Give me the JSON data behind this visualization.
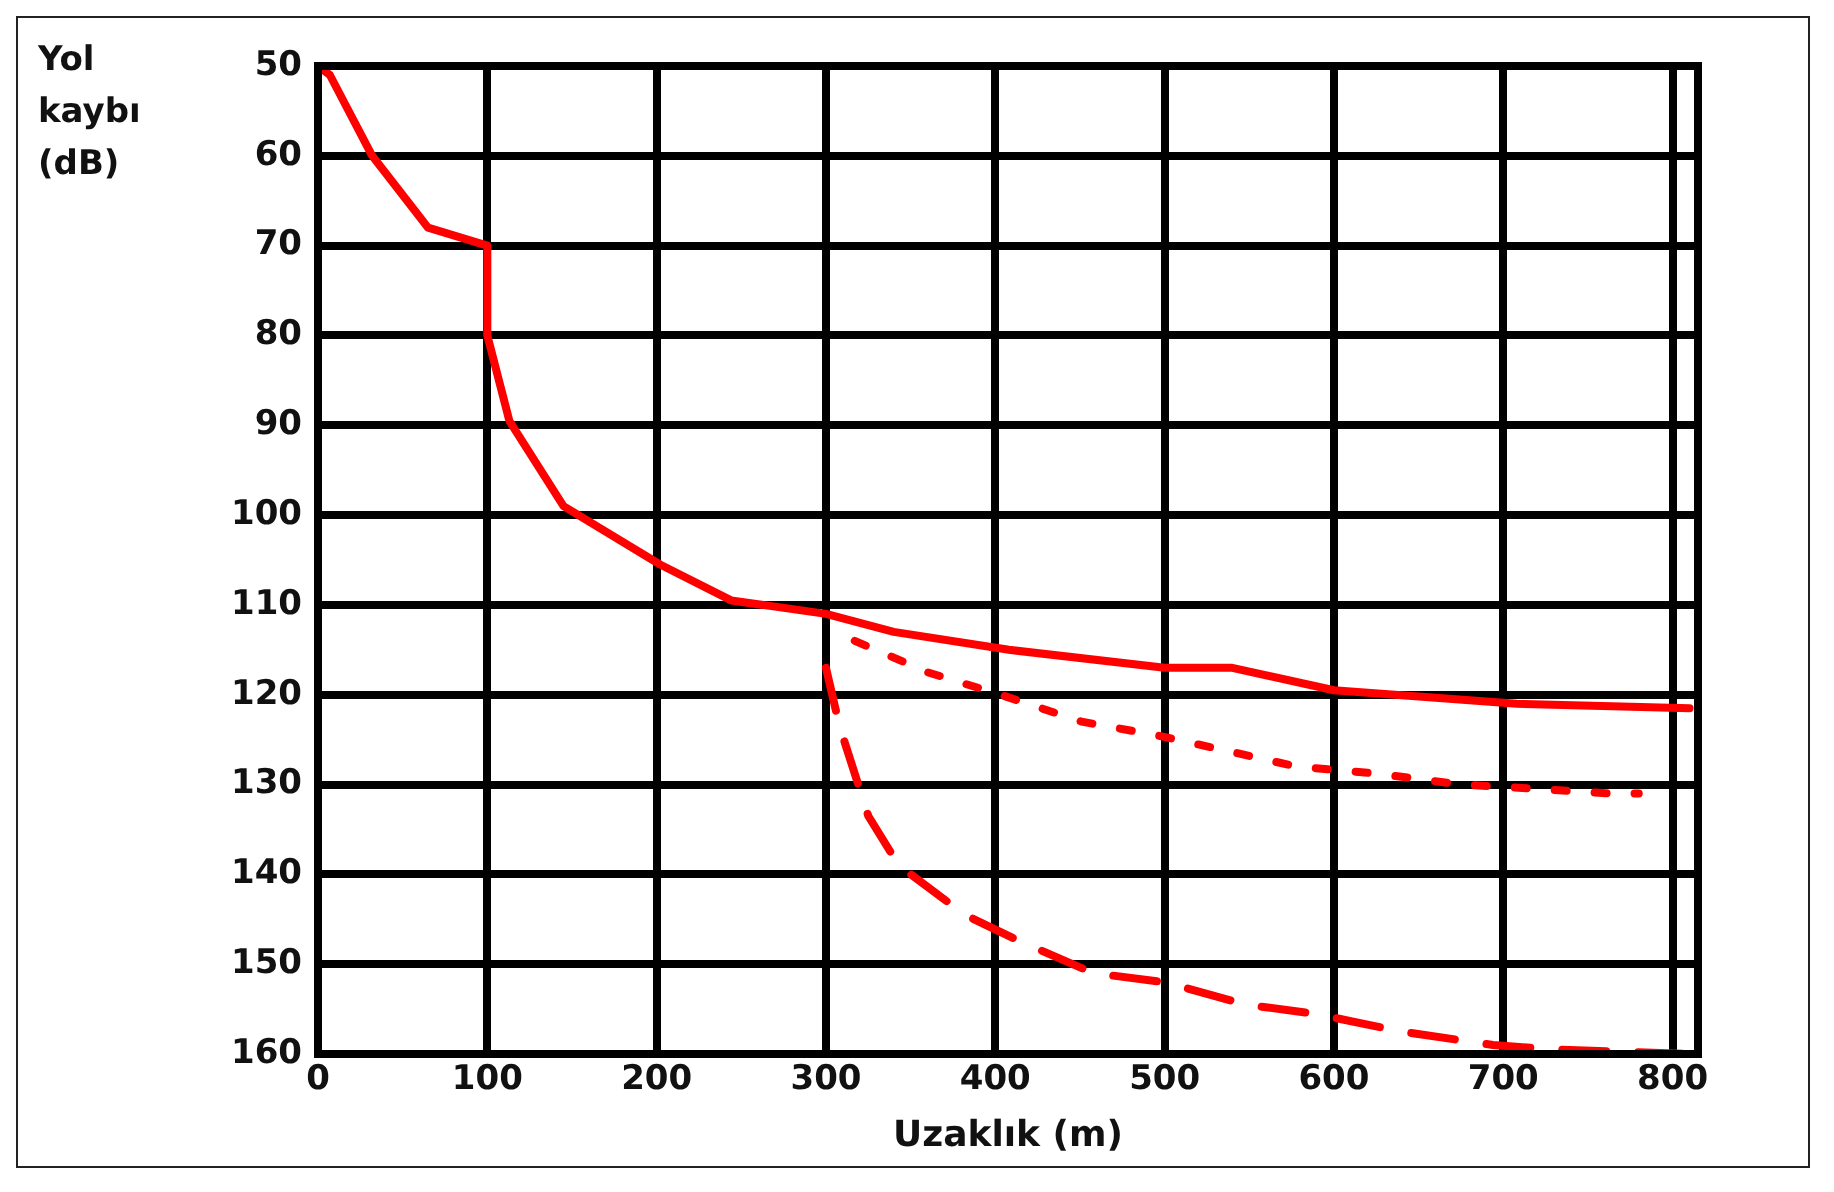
{
  "chart_data": {
    "type": "line",
    "xlabel": "Uzaklık (m)",
    "ylabel": "Yol kaybı (dB)",
    "xlim": [
      0,
      815
    ],
    "xticks": [
      0,
      100,
      200,
      300,
      400,
      500,
      600,
      700,
      800
    ],
    "ylim": [
      160,
      50
    ],
    "yticks": [
      50,
      60,
      70,
      80,
      90,
      100,
      110,
      120,
      130,
      140,
      150,
      160
    ],
    "grid": true,
    "legend": false,
    "marker": "none",
    "series": [
      {
        "color": "#ff0000",
        "line_style": "solid",
        "x": [
          0,
          7,
          32,
          65,
          100,
          100,
          113,
          145,
          202,
          244,
          300,
          340,
          408,
          500,
          540,
          600,
          708,
          810
        ],
        "values": [
          50,
          51,
          60,
          68,
          70,
          80,
          89.5,
          99,
          105.5,
          109.5,
          111,
          113,
          115,
          117,
          117,
          119.5,
          121,
          121.5
        ]
      },
      {
        "color": "#ff0000",
        "line_style": "dotted",
        "x": [
          317,
          360,
          403,
          451,
          495,
          531,
          578,
          626,
          675,
          722,
          764,
          780
        ],
        "values": [
          114,
          117.5,
          120,
          123,
          124.5,
          126,
          128,
          128.8,
          130,
          130.5,
          131,
          131
        ]
      },
      {
        "color": "#ff0000",
        "line_style": "dashed",
        "x": [
          300,
          308,
          325,
          343,
          382,
          415,
          458,
          500,
          548,
          588,
          640,
          694,
          729,
          810
        ],
        "values": [
          117,
          123.5,
          133.5,
          139,
          144.5,
          147.5,
          151,
          152,
          154.5,
          155.5,
          157.5,
          159,
          159.5,
          160
        ]
      }
    ]
  }
}
